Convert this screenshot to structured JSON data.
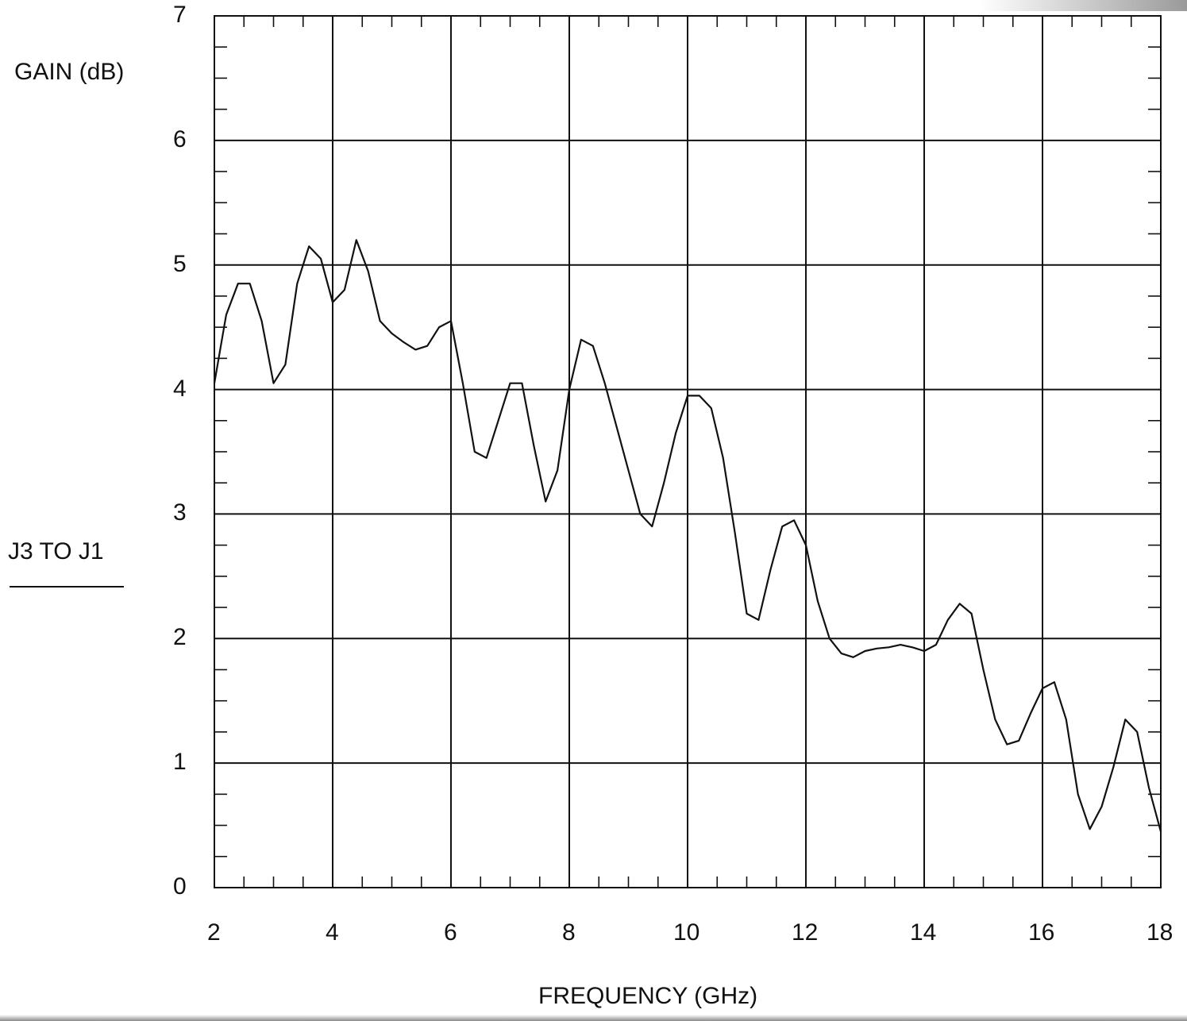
{
  "chart_data": {
    "type": "line",
    "ylabel": "GAIN (dB)",
    "xlabel": "FREQUENCY (GHz)",
    "series_label": "J3 TO J1",
    "xlim": [
      2,
      18
    ],
    "ylim": [
      0,
      7
    ],
    "grid": true,
    "x_ticks": [
      "2",
      "4",
      "6",
      "8",
      "10",
      "12",
      "14",
      "16",
      "18"
    ],
    "y_ticks": [
      "0",
      "1",
      "2",
      "3",
      "4",
      "5",
      "6",
      "7"
    ],
    "series": [
      {
        "x": [
          2.0,
          2.2,
          2.4,
          2.6,
          2.8,
          3.0,
          3.2,
          3.4,
          3.6,
          3.8,
          4.0,
          4.2,
          4.4,
          4.6,
          4.8,
          5.0,
          5.2,
          5.4,
          5.6,
          5.8,
          6.0,
          6.2,
          6.4,
          6.6,
          6.8,
          7.0,
          7.2,
          7.4,
          7.6,
          7.8,
          8.0,
          8.2,
          8.4,
          8.6,
          8.8,
          9.0,
          9.2,
          9.4,
          9.6,
          9.8,
          10.0,
          10.2,
          10.4,
          10.6,
          10.8,
          11.0,
          11.2,
          11.4,
          11.6,
          11.8,
          12.0,
          12.2,
          12.4,
          12.6,
          12.8,
          13.0,
          13.2,
          13.4,
          13.6,
          13.8,
          14.0,
          14.2,
          14.4,
          14.6,
          14.8,
          15.0,
          15.2,
          15.4,
          15.6,
          15.8,
          16.0,
          16.2,
          16.4,
          16.6,
          16.8,
          17.0,
          17.2,
          17.4,
          17.6,
          17.8,
          18.0
        ],
        "y": [
          4.05,
          4.6,
          4.85,
          4.85,
          4.55,
          4.05,
          4.2,
          4.85,
          5.15,
          5.05,
          4.7,
          4.8,
          5.2,
          4.95,
          4.55,
          4.45,
          4.38,
          4.32,
          4.35,
          4.5,
          4.55,
          4.05,
          3.5,
          3.45,
          3.75,
          4.05,
          4.05,
          3.55,
          3.1,
          3.35,
          4.0,
          4.4,
          4.35,
          4.05,
          3.7,
          3.35,
          3.0,
          2.9,
          3.25,
          3.65,
          3.95,
          3.95,
          3.85,
          3.45,
          2.85,
          2.2,
          2.15,
          2.55,
          2.9,
          2.95,
          2.75,
          2.3,
          2.0,
          1.88,
          1.85,
          1.9,
          1.92,
          1.93,
          1.95,
          1.93,
          1.9,
          1.95,
          2.15,
          2.28,
          2.2,
          1.75,
          1.35,
          1.15,
          1.18,
          1.4,
          1.6,
          1.65,
          1.35,
          0.75,
          0.47,
          0.65,
          0.97,
          1.35,
          1.25,
          0.8,
          0.45
        ]
      }
    ]
  }
}
